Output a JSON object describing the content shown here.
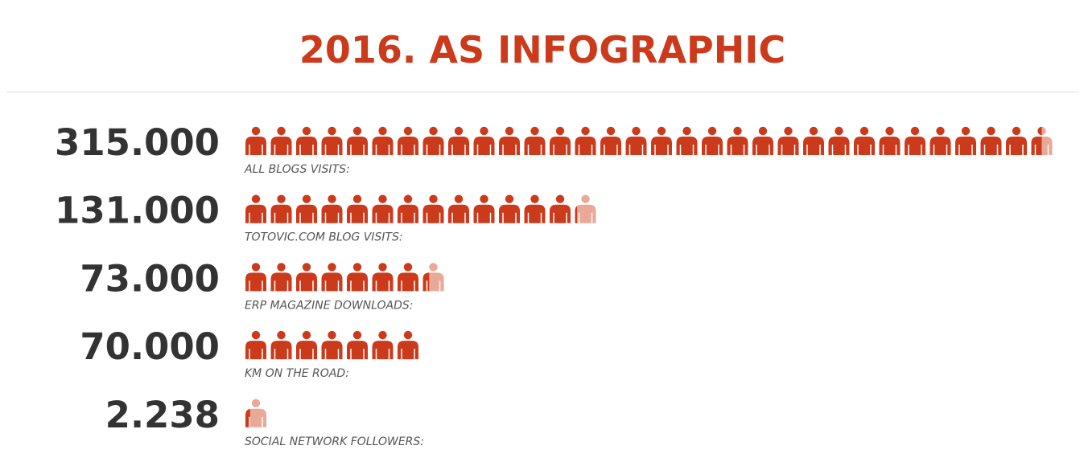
{
  "chart_data": {
    "type": "pictograph",
    "title": "2016. AS INFOGRAPHIC",
    "categories": [
      "ALL BLOGS VISITS:",
      "TOTOVIC.COM BLOG VISITS:",
      "ERP MAGAZINE DOWNLOADS:",
      "KM ON THE ROAD:",
      "SOCIAL NETWORK FOLLOWERS:"
    ],
    "values": [
      315000,
      131000,
      73000,
      70000,
      2238
    ],
    "value_labels": [
      "315.000",
      "131.000",
      "73.000",
      "70.000",
      "2.238"
    ],
    "color": "#cc3a1c",
    "empty_color": "#eaa898"
  }
}
